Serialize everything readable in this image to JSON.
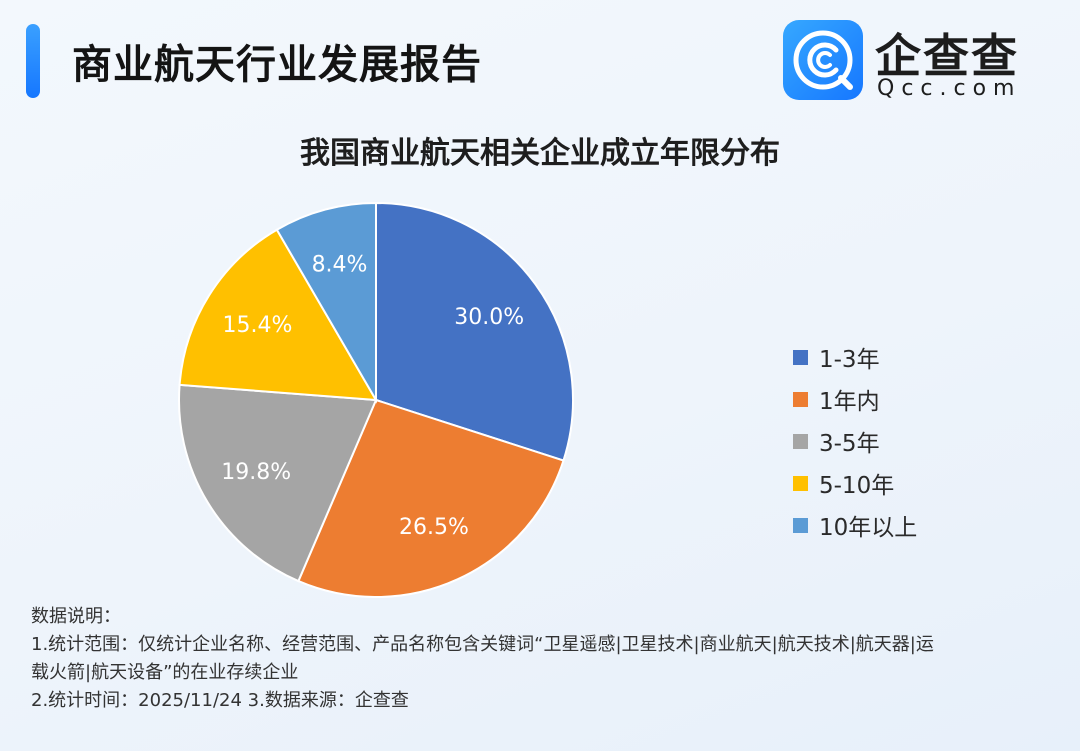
{
  "header": {
    "title": "商业航天行业发展报告"
  },
  "logo": {
    "name": "企查查",
    "domain": "Qcc.com",
    "icon": "qcc-logo-icon",
    "brand_color": "#1677ff"
  },
  "chart_data": {
    "type": "pie",
    "title": "我国商业航天相关企业成立年限分布",
    "slices": [
      {
        "label": "1-3年",
        "value": 30.0,
        "display": "30.0%",
        "color": "#4472c4"
      },
      {
        "label": "1年内",
        "value": 26.5,
        "display": "26.5%",
        "color": "#ed7d31"
      },
      {
        "label": "3-5年",
        "value": 19.8,
        "display": "19.8%",
        "color": "#a5a5a5"
      },
      {
        "label": "5-10年",
        "value": 15.4,
        "display": "15.4%",
        "color": "#ffc000"
      },
      {
        "label": "10年以上",
        "value": 8.4,
        "display": "8.4%",
        "color": "#5b9bd5"
      }
    ],
    "start": "12 o'clock",
    "direction": "clockwise",
    "legend_position": "right"
  },
  "notes": {
    "heading": "数据说明：",
    "line1": "1.统计范围：仅统计企业名称、经营范围、产品名称包含关键词“卫星遥感|卫星技术|商业航天|航天技术|航天器|运",
    "line2": "载火箭|航天设备”的在业存续企业",
    "line3": "2.统计时间：2025/11/24    3.数据来源：企查查"
  }
}
